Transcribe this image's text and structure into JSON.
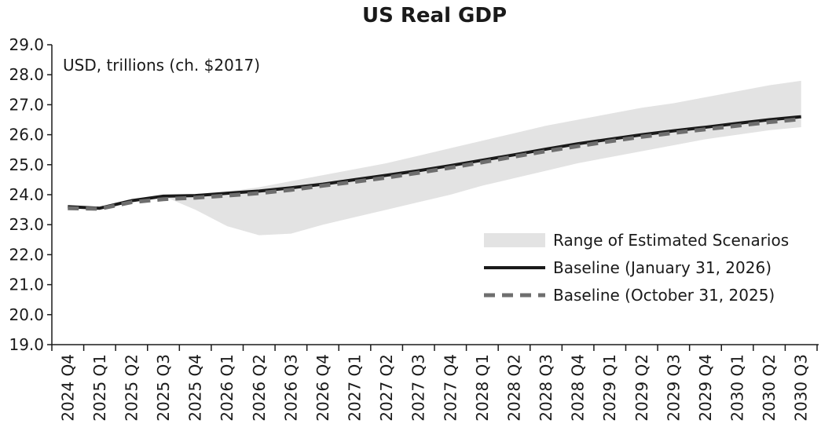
{
  "chart_data": {
    "type": "line",
    "title": "US Real GDP",
    "unit_label": "USD, trillions (ch. $2017)",
    "xlabel": "",
    "ylabel": "",
    "ylim": [
      19.0,
      29.0
    ],
    "yticks": [
      "19.0",
      "20.0",
      "21.0",
      "22.0",
      "23.0",
      "24.0",
      "25.0",
      "26.0",
      "27.0",
      "28.0",
      "29.0"
    ],
    "categories": [
      "2024 Q4",
      "2025 Q1",
      "2025 Q2",
      "2025 Q3",
      "2025 Q4",
      "2026 Q1",
      "2026 Q2",
      "2026 Q3",
      "2026 Q4",
      "2027 Q1",
      "2027 Q2",
      "2027 Q3",
      "2027 Q4",
      "2028 Q1",
      "2028 Q2",
      "2028 Q3",
      "2028 Q4",
      "2029 Q1",
      "2029 Q2",
      "2029 Q3",
      "2029 Q4",
      "2030 Q1",
      "2030 Q2",
      "2030 Q3"
    ],
    "range": {
      "name": "Range of Estimated Scenarios",
      "color": "#e3e3e3",
      "low": [
        23.6,
        23.55,
        23.8,
        23.95,
        23.5,
        22.95,
        22.65,
        22.7,
        23.0,
        23.25,
        23.5,
        23.75,
        24.0,
        24.3,
        24.55,
        24.8,
        25.05,
        25.25,
        25.45,
        25.65,
        25.85,
        26.0,
        26.15,
        26.25
      ],
      "high": [
        23.6,
        23.55,
        23.8,
        23.95,
        24.0,
        24.1,
        24.25,
        24.45,
        24.65,
        24.85,
        25.05,
        25.3,
        25.55,
        25.8,
        26.05,
        26.3,
        26.5,
        26.7,
        26.9,
        27.05,
        27.25,
        27.45,
        27.65,
        27.8
      ]
    },
    "series": [
      {
        "name": "Baseline (January 31, 2026)",
        "style": "solid",
        "color": "#1a1a1a",
        "values": [
          23.6,
          23.55,
          23.8,
          23.95,
          23.97,
          24.05,
          24.12,
          24.23,
          24.35,
          24.5,
          24.65,
          24.8,
          24.97,
          25.15,
          25.33,
          25.52,
          25.7,
          25.85,
          26.0,
          26.13,
          26.25,
          26.38,
          26.5,
          26.6
        ]
      },
      {
        "name": "Baseline (October 31, 2025)",
        "style": "dashed",
        "color": "#6e6e6e",
        "values": [
          23.55,
          23.53,
          23.75,
          23.85,
          23.9,
          23.97,
          24.05,
          24.16,
          24.3,
          24.43,
          24.57,
          24.73,
          24.9,
          25.08,
          25.27,
          25.45,
          25.62,
          25.78,
          25.93,
          26.06,
          26.18,
          26.3,
          26.42,
          26.52
        ]
      }
    ],
    "legend_position": "bottom-right",
    "grid": false
  }
}
